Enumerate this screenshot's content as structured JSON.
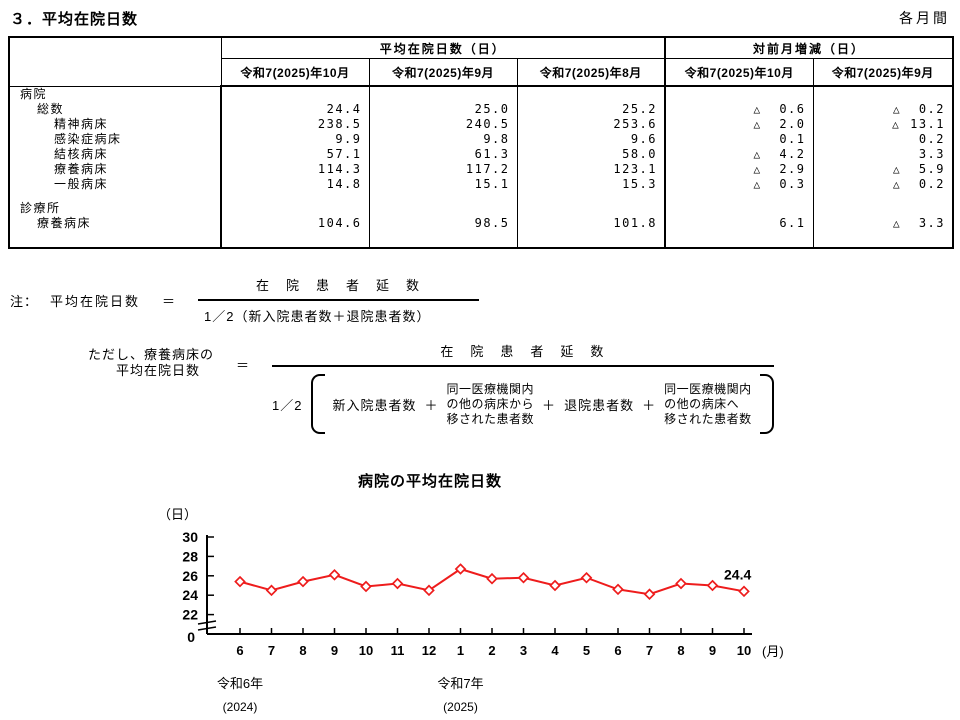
{
  "page": {
    "title": "３．平均在院日数",
    "period": "各月間"
  },
  "table": {
    "group_headers": [
      "平均在院日数（日）",
      "対前月増減（日）"
    ],
    "col_headers": [
      "令和7(2025)年10月",
      "令和7(2025)年9月",
      "令和7(2025)年8月",
      "令和7(2025)年10月",
      "令和7(2025)年9月"
    ],
    "rows": [
      {
        "label": "病院",
        "indent": 0,
        "cells": [
          {},
          {},
          {},
          {},
          {}
        ]
      },
      {
        "label": "総数",
        "indent": 1,
        "cells": [
          {
            "num": "24.4"
          },
          {
            "num": "25.0"
          },
          {
            "num": "25.2"
          },
          {
            "tri": "△",
            "num": "0.6"
          },
          {
            "tri": "△",
            "num": "0.2"
          }
        ]
      },
      {
        "label": "精神病床",
        "indent": 2,
        "cells": [
          {
            "num": "238.5"
          },
          {
            "num": "240.5"
          },
          {
            "num": "253.6"
          },
          {
            "tri": "△",
            "num": "2.0"
          },
          {
            "tri": "△",
            "num": "13.1"
          }
        ]
      },
      {
        "label": "感染症病床",
        "indent": 2,
        "cells": [
          {
            "num": "9.9"
          },
          {
            "num": "9.8"
          },
          {
            "num": "9.6"
          },
          {
            "num": "0.1"
          },
          {
            "num": "0.2"
          }
        ]
      },
      {
        "label": "結核病床",
        "indent": 2,
        "cells": [
          {
            "num": "57.1"
          },
          {
            "num": "61.3"
          },
          {
            "num": "58.0"
          },
          {
            "tri": "△",
            "num": "4.2"
          },
          {
            "num": "3.3"
          }
        ]
      },
      {
        "label": "療養病床",
        "indent": 2,
        "cells": [
          {
            "num": "114.3"
          },
          {
            "num": "117.2"
          },
          {
            "num": "123.1"
          },
          {
            "tri": "△",
            "num": "2.9"
          },
          {
            "tri": "△",
            "num": "5.9"
          }
        ]
      },
      {
        "label": "一般病床",
        "indent": 2,
        "cells": [
          {
            "num": "14.8"
          },
          {
            "num": "15.1"
          },
          {
            "num": "15.3"
          },
          {
            "tri": "△",
            "num": "0.3"
          },
          {
            "tri": "△",
            "num": "0.2"
          }
        ]
      },
      {
        "label": "診療所",
        "indent": 0,
        "gap_above": true,
        "cells": [
          {},
          {},
          {},
          {},
          {}
        ]
      },
      {
        "label": "療養病床",
        "indent": 1,
        "cells": [
          {
            "num": "104.6"
          },
          {
            "num": "98.5"
          },
          {
            "num": "101.8"
          },
          {
            "num": "6.1"
          },
          {
            "tri": "△",
            "num": "3.3"
          }
        ]
      }
    ]
  },
  "notes": {
    "note_label": "注：",
    "f1": {
      "lhs": "平均在院日数",
      "eq": "＝",
      "numerator": "在　院　患　者　延　数",
      "denominator": "1／2（新入院患者数＋退院患者数）"
    },
    "f2": {
      "lhs1": "ただし、療養病床の",
      "lhs2": "平均在院日数",
      "eq": "＝",
      "numerator": "在　院　患　者　延　数",
      "half": "1／2",
      "t1": "新入院患者数",
      "p1": "＋",
      "t2": [
        "同一医療機関内",
        "の他の病床から",
        "移された患者数"
      ],
      "p2": "＋",
      "t3": "退院患者数",
      "p3": "＋",
      "t4": [
        "同一医療機関内",
        "の他の病床へ",
        "移された患者数"
      ]
    }
  },
  "chart_data": {
    "type": "line",
    "title": "病院の平均在院日数",
    "unit_label": "（日）",
    "x_unit_label": "(月)",
    "x": [
      "6",
      "7",
      "8",
      "9",
      "10",
      "11",
      "12",
      "1",
      "2",
      "3",
      "4",
      "5",
      "6",
      "7",
      "8",
      "9",
      "10"
    ],
    "values": [
      25.4,
      24.5,
      25.4,
      26.1,
      24.9,
      25.2,
      24.5,
      26.7,
      25.7,
      25.8,
      25.0,
      25.8,
      24.6,
      24.1,
      25.2,
      25.0,
      24.4
    ],
    "last_point_label": "24.4",
    "yticks": [
      22,
      24,
      26,
      28,
      30
    ],
    "y_zero_label": "0",
    "axis_break": true,
    "ylim_visible": [
      22,
      30
    ],
    "grid": false,
    "legend": "none",
    "line_color": "#ee1c1c",
    "era_labels": [
      {
        "label": "令和6年",
        "sub": "(2024)",
        "month_index": 0
      },
      {
        "label": "令和7年",
        "sub": "(2025)",
        "month_index": 7
      }
    ]
  }
}
